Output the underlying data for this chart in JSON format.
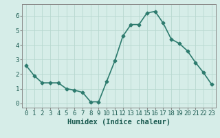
{
  "x": [
    0,
    1,
    2,
    3,
    4,
    5,
    6,
    7,
    8,
    9,
    10,
    11,
    12,
    13,
    14,
    15,
    16,
    17,
    18,
    19,
    20,
    21,
    22,
    23
  ],
  "y": [
    2.6,
    1.9,
    1.4,
    1.4,
    1.4,
    1.0,
    0.9,
    0.75,
    0.1,
    0.1,
    1.5,
    2.9,
    4.6,
    5.4,
    5.4,
    6.2,
    6.3,
    5.5,
    4.4,
    4.1,
    3.6,
    2.8,
    2.1,
    1.3
  ],
  "line_color": "#2d7b6e",
  "marker": "D",
  "marker_size": 2.5,
  "line_width": 1.2,
  "bg_color": "#d6ede8",
  "grid_color": "#b8d8d0",
  "xlabel": "Humidex (Indice chaleur)",
  "xlim": [
    -0.5,
    23.5
  ],
  "ylim": [
    -0.3,
    6.8
  ],
  "yticks": [
    0,
    1,
    2,
    3,
    4,
    5,
    6
  ],
  "xticks": [
    0,
    1,
    2,
    3,
    4,
    5,
    6,
    7,
    8,
    9,
    10,
    11,
    12,
    13,
    14,
    15,
    16,
    17,
    18,
    19,
    20,
    21,
    22,
    23
  ],
  "xlabel_fontsize": 7.5,
  "tick_fontsize": 6.5
}
